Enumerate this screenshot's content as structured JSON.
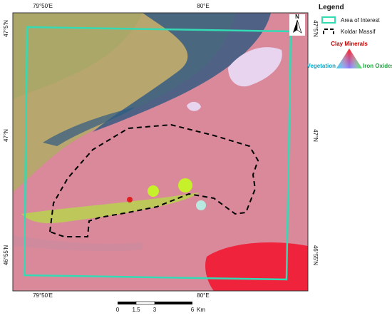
{
  "coordinates": {
    "top": [
      "79°50'E",
      "80°E"
    ],
    "bottom": [
      "79°50'E",
      "80°E"
    ],
    "left": [
      "47°5'N",
      "47°N",
      "46°55'N"
    ],
    "right": [
      "47°5'N",
      "47°N",
      "46°55'N"
    ]
  },
  "north_arrow": "N",
  "legend": {
    "title": "Legend",
    "items": [
      "Area of Interest",
      "Koldar Massif"
    ],
    "triangle": {
      "top": "Clay Minerals",
      "left": "Vegetation",
      "right": "Iron Oxides"
    }
  },
  "scale_bar": {
    "labels": [
      "0",
      "1.5",
      "3",
      "6"
    ],
    "unit": "Km"
  }
}
